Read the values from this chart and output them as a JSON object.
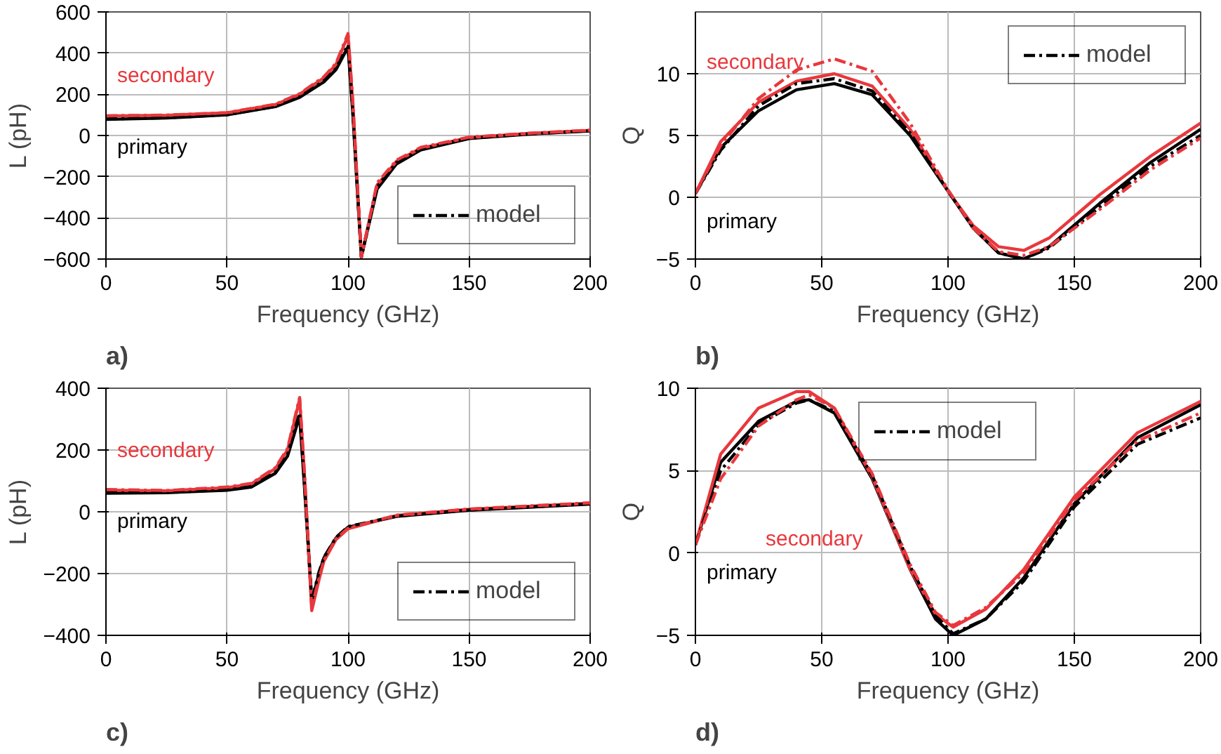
{
  "chart_data": [
    {
      "type": "line",
      "xlabel": "Frequency (GHz)",
      "ylabel": "L (pH)",
      "xlim": [
        0,
        200
      ],
      "xticks": [
        0,
        50,
        100,
        150,
        200
      ],
      "ylim": [
        -600,
        600
      ],
      "yticks": [
        -600,
        -400,
        -200,
        0,
        200,
        400,
        600
      ],
      "grid": true,
      "legend": "bottom right",
      "x": [
        0,
        25,
        50,
        70,
        80,
        90,
        95,
        100,
        102,
        104,
        105.5,
        112,
        120,
        130,
        150,
        175,
        200
      ],
      "series": [
        {
          "color": "#000000",
          "line_style": "solid",
          "values": [
            78,
            85,
            100,
            140,
            185,
            260,
            320,
            430,
            100,
            -300,
            -590,
            -260,
            -138,
            -70,
            -15,
            7,
            22
          ]
        },
        {
          "color": "#e8383d",
          "line_style": "solid",
          "values": [
            95,
            98,
            110,
            150,
            200,
            280,
            345,
            485,
            150,
            -280,
            -590,
            -240,
            -125,
            -62,
            -10,
            10,
            25
          ]
        },
        {
          "name": "model",
          "color": "#000000",
          "line_style": "dashed",
          "values": [
            80,
            86,
            101,
            142,
            188,
            265,
            325,
            440,
            110,
            -290,
            -590,
            -250,
            -132,
            -66,
            -13,
            8,
            23
          ]
        },
        {
          "color": "#e8383d",
          "line_style": "dashed",
          "values": [
            96,
            99,
            111,
            152,
            203,
            285,
            350,
            495,
            160,
            -270,
            -590,
            -230,
            -120,
            -58,
            -8,
            11,
            26
          ]
        }
      ],
      "annotations": [
        "primary",
        "secondary",
        "a)"
      ]
    },
    {
      "type": "line",
      "xlabel": "Frequency (GHz)",
      "ylabel": "Q",
      "xlim": [
        0,
        200
      ],
      "xticks": [
        0,
        50,
        100,
        150,
        200
      ],
      "ylim": [
        -5,
        15
      ],
      "yticks": [
        -5,
        0,
        5,
        10
      ],
      "grid": true,
      "legend": "top right",
      "x": [
        0,
        10,
        25,
        40,
        55,
        70,
        85,
        100,
        110,
        120,
        130,
        140,
        160,
        180,
        200
      ],
      "series": [
        {
          "color": "#000000",
          "line_style": "solid",
          "values": [
            0.3,
            4,
            7,
            8.7,
            9.2,
            8.3,
            5,
            0.5,
            -2.5,
            -4.5,
            -5,
            -4,
            -0.5,
            2.8,
            5.5
          ]
        },
        {
          "color": "#e8383d",
          "line_style": "solid",
          "values": [
            0.3,
            4.5,
            7.7,
            9.4,
            10,
            9,
            5.5,
            0.5,
            -2.3,
            -4,
            -4.3,
            -3.3,
            0.2,
            3.3,
            6
          ]
        },
        {
          "name": "model",
          "color": "#000000",
          "line_style": "dashed",
          "values": [
            0.3,
            3.8,
            7.4,
            9.2,
            9.6,
            8.6,
            5.2,
            0.5,
            -2.5,
            -4.5,
            -5,
            -4.1,
            -0.8,
            2.5,
            5
          ]
        },
        {
          "color": "#e8383d",
          "line_style": "dashed",
          "values": [
            0.3,
            4.2,
            8,
            10.3,
            11.2,
            10.2,
            6,
            0.6,
            -2.5,
            -4.4,
            -4.7,
            -4,
            -1,
            2.2,
            4.8
          ]
        }
      ],
      "annotations": [
        "primary",
        "secondary",
        "b)"
      ]
    },
    {
      "type": "line",
      "xlabel": "Frequency (GHz)",
      "ylabel": "L (pH)",
      "xlim": [
        0,
        200
      ],
      "xticks": [
        0,
        50,
        100,
        150,
        200
      ],
      "ylim": [
        -400,
        400
      ],
      "yticks": [
        -400,
        -200,
        0,
        200,
        400
      ],
      "grid": true,
      "legend": "bottom right",
      "x": [
        0,
        25,
        50,
        60,
        70,
        75,
        80,
        82,
        85,
        88,
        90,
        95,
        100,
        120,
        150,
        200
      ],
      "series": [
        {
          "color": "#000000",
          "line_style": "solid",
          "values": [
            60,
            62,
            70,
            80,
            125,
            180,
            310,
            80,
            -290,
            -200,
            -150,
            -85,
            -50,
            -15,
            5,
            25
          ]
        },
        {
          "color": "#e8383d",
          "line_style": "solid",
          "values": [
            70,
            68,
            78,
            90,
            140,
            200,
            365,
            120,
            -320,
            -220,
            -160,
            -90,
            -55,
            -12,
            8,
            28
          ]
        },
        {
          "name": "model",
          "color": "#000000",
          "line_style": "dashed",
          "values": [
            62,
            63,
            71,
            82,
            128,
            185,
            320,
            90,
            -285,
            -195,
            -148,
            -83,
            -48,
            -14,
            6,
            26
          ]
        },
        {
          "color": "#e8383d",
          "line_style": "dashed",
          "values": [
            72,
            69,
            80,
            92,
            143,
            205,
            370,
            125,
            -310,
            -215,
            -158,
            -88,
            -53,
            -11,
            9,
            29
          ]
        }
      ],
      "annotations": [
        "primary",
        "secondary",
        "c)"
      ]
    },
    {
      "type": "line",
      "xlabel": "Frequency (GHz)",
      "ylabel": "Q",
      "xlim": [
        0,
        200
      ],
      "xticks": [
        0,
        50,
        100,
        150,
        200
      ],
      "ylim": [
        -5,
        10
      ],
      "yticks": [
        -5,
        0,
        5,
        10
      ],
      "grid": true,
      "legend": "top",
      "x": [
        0,
        10,
        25,
        40,
        45,
        55,
        70,
        85,
        95,
        102,
        115,
        130,
        150,
        175,
        200
      ],
      "series": [
        {
          "color": "#000000",
          "line_style": "solid",
          "values": [
            0.5,
            5.5,
            8,
            9.2,
            9.3,
            8.5,
            4.5,
            -1,
            -4,
            -5,
            -4,
            -1.5,
            3,
            7,
            9
          ]
        },
        {
          "color": "#e8383d",
          "line_style": "solid",
          "values": [
            0.5,
            6,
            8.8,
            9.8,
            9.8,
            8.8,
            4.6,
            -1,
            -3.7,
            -4.5,
            -3.4,
            -1,
            3.4,
            7.3,
            9.2
          ]
        },
        {
          "name": "model",
          "color": "#000000",
          "line_style": "dashed",
          "values": [
            0.5,
            5,
            7.8,
            9.1,
            9.3,
            8.6,
            4.7,
            -0.8,
            -3.8,
            -4.9,
            -4,
            -1.7,
            2.8,
            6.6,
            8.2
          ]
        },
        {
          "color": "#e8383d",
          "line_style": "dashed",
          "values": [
            0.5,
            4.5,
            7.7,
            9.3,
            9.6,
            8.8,
            4.8,
            -0.7,
            -3.6,
            -4.4,
            -3.3,
            -1.2,
            3.2,
            6.8,
            8.5
          ]
        }
      ],
      "annotations": [
        "primary",
        "secondary",
        "d)"
      ]
    }
  ]
}
